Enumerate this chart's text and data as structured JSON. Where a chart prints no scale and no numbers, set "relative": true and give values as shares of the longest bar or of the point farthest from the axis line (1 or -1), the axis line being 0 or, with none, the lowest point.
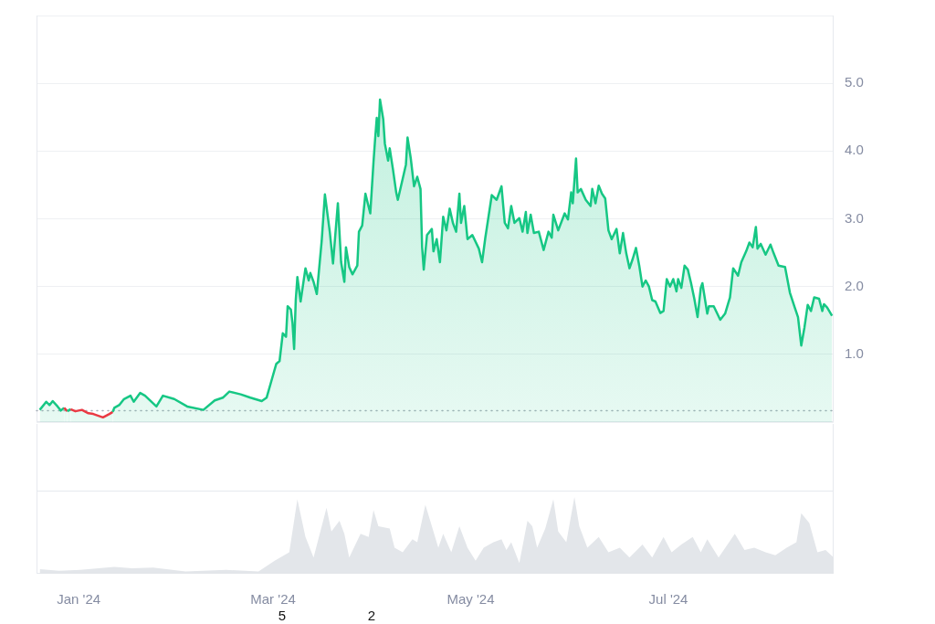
{
  "chart_data": [
    {
      "type": "area",
      "x": [
        "2023-12-20",
        "2023-12-22",
        "2023-12-23",
        "2023-12-24",
        "2023-12-25T12:00",
        "2023-12-26T12:00",
        "2023-12-27T12:00",
        "2023-12-28T12:00",
        "2023-12-29T12:00",
        "2023-12-31",
        "2024-01-02",
        "2024-01-04",
        "2024-01-05T12:00",
        "2024-01-08T12:00",
        "2024-01-10T12:00",
        "2024-01-11T12:00",
        "2024-01-12",
        "2024-01-13T12:00",
        "2024-01-15",
        "2024-01-17",
        "2024-01-18",
        "2024-01-20",
        "2024-01-21T12:00",
        "2024-01-25",
        "2024-01-27",
        "2024-01-30T12:00",
        "2024-02-03T12:00",
        "2024-02-08T12:00",
        "2024-02-12",
        "2024-02-14T12:00",
        "2024-02-16T12:00",
        "2024-02-20",
        "2024-02-23",
        "2024-02-26T12:00",
        "2024-02-28",
        "2024-02-29T12:00",
        "2024-03-02",
        "2024-03-03",
        "2024-03-04",
        "2024-03-05",
        "2024-03-05T12:00",
        "2024-03-06T12:00",
        "2024-03-07",
        "2024-03-07T12:00",
        "2024-03-08",
        "2024-03-08T12:00",
        "2024-03-09T12:00",
        "2024-03-11",
        "2024-03-12",
        "2024-03-12T12:00",
        "2024-03-13T12:00",
        "2024-03-14T12:00",
        "2024-03-16",
        "2024-03-17",
        "2024-03-18T12:00",
        "2024-03-19T12:00",
        "2024-03-21",
        "2024-03-22",
        "2024-03-23",
        "2024-03-23T12:00",
        "2024-03-24T12:00",
        "2024-03-25T12:00",
        "2024-03-27",
        "2024-03-27T12:00",
        "2024-03-28T12:00",
        "2024-03-29T12:00",
        "2024-03-31",
        "2024-04-01",
        "2024-04-01T12:00",
        "2024-04-02",
        "2024-04-02T12:00",
        "2024-04-03",
        "2024-04-04",
        "2024-04-04T12:00",
        "2024-04-05T12:00",
        "2024-04-06",
        "2024-04-07",
        "2024-04-08",
        "2024-04-08T12:00",
        "2024-04-10",
        "2024-04-11",
        "2024-04-11T12:00",
        "2024-04-12T12:00",
        "2024-04-13T12:00",
        "2024-04-14T12:00",
        "2024-04-15T12:00",
        "2024-04-16",
        "2024-04-16T12:00",
        "2024-04-17T12:00",
        "2024-04-19",
        "2024-04-19T12:00",
        "2024-04-20T12:00",
        "2024-04-21T12:00",
        "2024-04-22T12:00",
        "2024-04-23T12:00",
        "2024-04-24T12:00",
        "2024-04-25T12:00",
        "2024-04-26T12:00",
        "2024-04-27T12:00",
        "2024-04-28",
        "2024-04-29",
        "2024-04-30",
        "2024-05-01T12:00",
        "2024-05-03T12:00",
        "2024-05-04T12:00",
        "2024-05-05T12:00",
        "2024-05-07T12:00",
        "2024-05-09",
        "2024-05-10T12:00",
        "2024-05-11T12:00",
        "2024-05-12T12:00",
        "2024-05-13T12:00",
        "2024-05-14T12:00",
        "2024-05-16",
        "2024-05-17",
        "2024-05-18",
        "2024-05-18T12:00",
        "2024-05-19T12:00",
        "2024-05-20T12:00",
        "2024-05-22",
        "2024-05-23T12:00",
        "2024-05-25",
        "2024-05-26",
        "2024-05-26T12:00",
        "2024-05-28",
        "2024-05-30",
        "2024-05-31",
        "2024-06-01",
        "2024-06-01T12:00",
        "2024-06-02T12:00",
        "2024-06-03",
        "2024-06-04",
        "2024-06-05T12:00",
        "2024-06-07",
        "2024-06-07T12:00",
        "2024-06-08T12:00",
        "2024-06-09T12:00",
        "2024-06-10T12:00",
        "2024-06-11T12:00",
        "2024-06-12T12:00",
        "2024-06-13T12:00",
        "2024-06-15",
        "2024-06-16",
        "2024-06-17",
        "2024-06-18",
        "2024-06-19",
        "2024-06-20",
        "2024-06-21",
        "2024-06-22",
        "2024-06-23",
        "2024-06-24",
        "2024-06-25",
        "2024-06-26",
        "2024-06-27",
        "2024-06-28T12:00",
        "2024-06-29T12:00",
        "2024-06-30T12:00",
        "2024-07-01T12:00",
        "2024-07-02T12:00",
        "2024-07-03T12:00",
        "2024-07-04",
        "2024-07-05",
        "2024-07-06",
        "2024-07-07",
        "2024-07-08",
        "2024-07-09",
        "2024-07-10",
        "2024-07-11",
        "2024-07-11T12:00",
        "2024-07-13",
        "2024-07-13T12:00",
        "2024-07-15",
        "2024-07-17",
        "2024-07-18T12:00",
        "2024-07-20",
        "2024-07-21",
        "2024-07-22T12:00",
        "2024-07-23T12:00",
        "2024-07-25",
        "2024-07-26",
        "2024-07-27",
        "2024-07-28",
        "2024-07-28T12:00",
        "2024-07-29T12:00",
        "2024-07-31",
        "2024-08-01T12:00",
        "2024-08-02T12:00",
        "2024-08-04",
        "2024-08-06",
        "2024-08-07T12:00",
        "2024-08-09",
        "2024-08-10",
        "2024-08-11",
        "2024-08-12",
        "2024-08-13",
        "2024-08-14",
        "2024-08-15",
        "2024-08-16T12:00",
        "2024-08-17T12:00",
        "2024-08-18",
        "2024-08-19",
        "2024-08-20T12:00"
      ],
      "values": [
        0.18,
        0.3,
        0.25,
        0.31,
        0.23,
        0.17,
        0.21,
        0.16,
        0.19,
        0.16,
        0.18,
        0.13,
        0.12,
        0.07,
        0.12,
        0.15,
        0.21,
        0.25,
        0.34,
        0.39,
        0.3,
        0.43,
        0.39,
        0.23,
        0.39,
        0.34,
        0.23,
        0.18,
        0.32,
        0.36,
        0.45,
        0.41,
        0.36,
        0.31,
        0.36,
        0.61,
        0.86,
        0.9,
        1.31,
        1.26,
        1.71,
        1.66,
        1.46,
        1.08,
        1.8,
        2.14,
        1.78,
        2.27,
        2.09,
        2.2,
        2.07,
        1.89,
        2.67,
        3.36,
        2.81,
        2.34,
        3.23,
        2.36,
        2.07,
        2.58,
        2.29,
        2.18,
        2.31,
        2.81,
        2.9,
        3.37,
        3.08,
        3.84,
        4.18,
        4.49,
        4.22,
        4.76,
        4.47,
        4.11,
        3.86,
        4.04,
        3.73,
        3.39,
        3.28,
        3.59,
        3.8,
        4.2,
        3.89,
        3.48,
        3.62,
        3.44,
        2.58,
        2.25,
        2.76,
        2.85,
        2.52,
        2.7,
        2.36,
        3.03,
        2.83,
        3.15,
        2.94,
        2.81,
        3.37,
        2.94,
        3.19,
        2.7,
        2.76,
        2.56,
        2.36,
        2.72,
        3.35,
        3.28,
        3.48,
        2.94,
        2.86,
        3.19,
        2.94,
        3.01,
        2.81,
        3.1,
        2.79,
        3.06,
        2.79,
        2.81,
        2.54,
        2.81,
        2.72,
        3.06,
        2.83,
        3.08,
        2.99,
        3.39,
        3.23,
        3.89,
        3.39,
        3.44,
        3.28,
        3.19,
        3.44,
        3.23,
        3.49,
        3.37,
        3.3,
        2.83,
        2.7,
        2.85,
        2.49,
        2.79,
        2.49,
        2.27,
        2.41,
        2.57,
        2.31,
        2.0,
        2.09,
        2.0,
        1.8,
        1.78,
        1.61,
        1.64,
        2.11,
        2.0,
        2.11,
        1.93,
        2.11,
        1.98,
        2.31,
        2.25,
        2.05,
        1.82,
        1.55,
        1.98,
        2.05,
        1.6,
        1.71,
        1.71,
        1.51,
        1.6,
        1.84,
        2.27,
        2.16,
        2.36,
        2.52,
        2.65,
        2.58,
        2.88,
        2.56,
        2.63,
        2.47,
        2.62,
        2.49,
        2.31,
        2.29,
        1.91,
        1.69,
        1.55,
        1.13,
        1.4,
        1.73,
        1.64,
        1.84,
        1.82,
        1.64,
        1.74,
        1.69,
        1.57
      ],
      "color": "#16c784",
      "colors": [
        "#16c784",
        "#16c784",
        "#16c784",
        "#16c784",
        "#16c784",
        "#16c784",
        "#16c784",
        "#ea3943",
        "#16c784",
        "#ea3943",
        "#ea3943",
        "#ea3943",
        "#ea3943",
        "#ea3943",
        "#ea3943",
        "#ea3943",
        "#16c784",
        "#16c784",
        "#16c784",
        "#16c784",
        "#16c784",
        "#16c784",
        "#16c784",
        "#16c784",
        "#16c784",
        "#16c784",
        "#16c784",
        "#16c784",
        "#16c784",
        "#16c784",
        "#16c784",
        "#16c784",
        "#16c784",
        "#16c784",
        "#16c784",
        "#16c784",
        "#16c784",
        "#16c784",
        "#16c784",
        "#16c784",
        "#16c784",
        "#16c784",
        "#16c784",
        "#16c784",
        "#16c784",
        "#16c784",
        "#16c784",
        "#16c784",
        "#16c784",
        "#16c784",
        "#16c784",
        "#16c784",
        "#16c784",
        "#16c784",
        "#16c784",
        "#16c784",
        "#16c784",
        "#16c784",
        "#16c784",
        "#16c784",
        "#16c784",
        "#16c784",
        "#16c784",
        "#16c784",
        "#16c784",
        "#16c784",
        "#16c784",
        "#16c784",
        "#16c784",
        "#16c784",
        "#16c784",
        "#16c784",
        "#16c784",
        "#16c784",
        "#16c784",
        "#16c784",
        "#16c784",
        "#16c784",
        "#16c784",
        "#16c784",
        "#16c784",
        "#16c784",
        "#16c784",
        "#16c784",
        "#16c784",
        "#16c784",
        "#16c784",
        "#16c784",
        "#16c784",
        "#16c784",
        "#16c784",
        "#16c784",
        "#16c784",
        "#16c784",
        "#16c784",
        "#16c784",
        "#16c784",
        "#16c784",
        "#16c784",
        "#16c784",
        "#16c784",
        "#16c784",
        "#16c784",
        "#16c784",
        "#16c784",
        "#16c784",
        "#16c784",
        "#16c784",
        "#16c784",
        "#16c784",
        "#16c784",
        "#16c784",
        "#16c784",
        "#16c784",
        "#16c784",
        "#16c784",
        "#16c784",
        "#16c784",
        "#16c784",
        "#16c784",
        "#16c784",
        "#16c784",
        "#16c784",
        "#16c784",
        "#16c784",
        "#16c784",
        "#16c784",
        "#16c784",
        "#16c784",
        "#16c784",
        "#16c784",
        "#16c784",
        "#16c784",
        "#16c784",
        "#16c784",
        "#16c784",
        "#16c784",
        "#16c784",
        "#16c784",
        "#16c784",
        "#16c784",
        "#16c784",
        "#16c784",
        "#16c784",
        "#16c784",
        "#16c784",
        "#16c784",
        "#16c784",
        "#16c784",
        "#16c784",
        "#16c784",
        "#16c784",
        "#16c784",
        "#16c784",
        "#16c784",
        "#16c784",
        "#16c784",
        "#16c784",
        "#16c784",
        "#16c784",
        "#16c784",
        "#16c784",
        "#16c784",
        "#16c784",
        "#16c784",
        "#16c784",
        "#16c784",
        "#16c784",
        "#16c784",
        "#16c784",
        "#16c784",
        "#16c784",
        "#16c784",
        "#16c784",
        "#16c784",
        "#16c784",
        "#16c784",
        "#16c784",
        "#16c784",
        "#16c784",
        "#16c784",
        "#16c784",
        "#16c784",
        "#16c784",
        "#16c784",
        "#16c784",
        "#16c784",
        "#16c784",
        "#16c784",
        "#16c784",
        "#16c784",
        "#16c784",
        "#16c784",
        "#16c784",
        "#16c784",
        "#16c784",
        "#16c784",
        "#16c784",
        "#16c784",
        "#16c784",
        "#16c784",
        "#16c784"
      ],
      "xlim": [
        "2023-12-19",
        "2024-08-21"
      ],
      "ylim": [
        0,
        6
      ],
      "yticks": [
        {
          "value": 0,
          "label": null
        },
        {
          "value": 1,
          "label": "1.0"
        },
        {
          "value": 2,
          "label": "2.0"
        },
        {
          "value": 3,
          "label": "3.0"
        },
        {
          "value": 4,
          "label": "4.0"
        },
        {
          "value": 5,
          "label": "5.0"
        },
        {
          "value": 6,
          "label": null
        }
      ],
      "grid": "y",
      "tick_labels": "y",
      "ref_lines": [
        {
          "axis": "y",
          "value": 0.17,
          "line_style": "dotted",
          "color": "#a9afb9"
        }
      ]
    },
    {
      "type": "area",
      "x": [
        "2023-12-20",
        "2023-12-26",
        "2024-01-01T12:00",
        "2024-01-12",
        "2024-01-17T12:00",
        "2024-01-24",
        "2024-02-03",
        "2024-02-15T12:00",
        "2024-02-25T12:00",
        "2024-03-01T12:00",
        "2024-03-06",
        "2024-03-08T12:00",
        "2024-03-11",
        "2024-03-13T12:00",
        "2024-03-17T12:00",
        "2024-03-19",
        "2024-03-21T12:00",
        "2024-03-23",
        "2024-03-24T12:00",
        "2024-03-28",
        "2024-03-30T12:00",
        "2024-04-01",
        "2024-04-02T12:00",
        "2024-04-06",
        "2024-04-07T12:00",
        "2024-04-10",
        "2024-04-13",
        "2024-04-14T12:00",
        "2024-04-17",
        "2024-04-18T12:00",
        "2024-04-21",
        "2024-04-22T12:00",
        "2024-04-25",
        "2024-04-27T12:00",
        "2024-04-30",
        "2024-05-02T12:00",
        "2024-05-05",
        "2024-05-08",
        "2024-05-10T12:00",
        "2024-05-12",
        "2024-05-13T12:00",
        "2024-05-16",
        "2024-05-18T12:00",
        "2024-05-20",
        "2024-05-21T12:00",
        "2024-05-24",
        "2024-05-26T12:00",
        "2024-05-28",
        "2024-05-30T12:00",
        "2024-06-02",
        "2024-06-03T12:00",
        "2024-06-06",
        "2024-06-09T12:00",
        "2024-06-12T12:00",
        "2024-06-16",
        "2024-06-19",
        "2024-06-23",
        "2024-06-26",
        "2024-06-29T12:00",
        "2024-07-02",
        "2024-07-05",
        "2024-07-08T12:00",
        "2024-07-11",
        "2024-07-13",
        "2024-07-16T12:00",
        "2024-07-21T12:00",
        "2024-07-24T12:00",
        "2024-07-27T12:00",
        "2024-07-31",
        "2024-08-03",
        "2024-08-06T12:00",
        "2024-08-09T12:00",
        "2024-08-11",
        "2024-08-13T12:00",
        "2024-08-16",
        "2024-08-18T12:00",
        "2024-08-21"
      ],
      "values": [
        0.06,
        0.04,
        0.05,
        0.09,
        0.07,
        0.08,
        0.03,
        0.05,
        0.03,
        0.17,
        0.28,
        0.97,
        0.48,
        0.21,
        0.86,
        0.55,
        0.69,
        0.52,
        0.21,
        0.52,
        0.48,
        0.83,
        0.62,
        0.59,
        0.34,
        0.28,
        0.45,
        0.41,
        0.9,
        0.69,
        0.34,
        0.52,
        0.28,
        0.62,
        0.34,
        0.17,
        0.34,
        0.41,
        0.45,
        0.31,
        0.41,
        0.14,
        0.69,
        0.62,
        0.34,
        0.59,
        0.97,
        0.55,
        0.41,
        1,
        0.62,
        0.34,
        0.48,
        0.28,
        0.34,
        0.21,
        0.38,
        0.21,
        0.48,
        0.28,
        0.38,
        0.48,
        0.28,
        0.45,
        0.21,
        0.52,
        0.31,
        0.34,
        0.28,
        0.24,
        0.34,
        0.41,
        0.79,
        0.66,
        0.28,
        0.31,
        0.21
      ],
      "color": "#e3e6ea",
      "relative": true,
      "xlim": [
        "2023-12-19",
        "2024-08-21"
      ],
      "xticks": [
        {
          "value": "2024-01-01",
          "label": "Jan '24"
        },
        {
          "value": "2024-03-01",
          "label": "Mar '24"
        },
        {
          "value": "2024-05-01",
          "label": "May '24"
        },
        {
          "value": "2024-07-01",
          "label": "Jul '24"
        }
      ],
      "tick_labels": "x",
      "annotations": [
        "5",
        "2"
      ]
    }
  ]
}
